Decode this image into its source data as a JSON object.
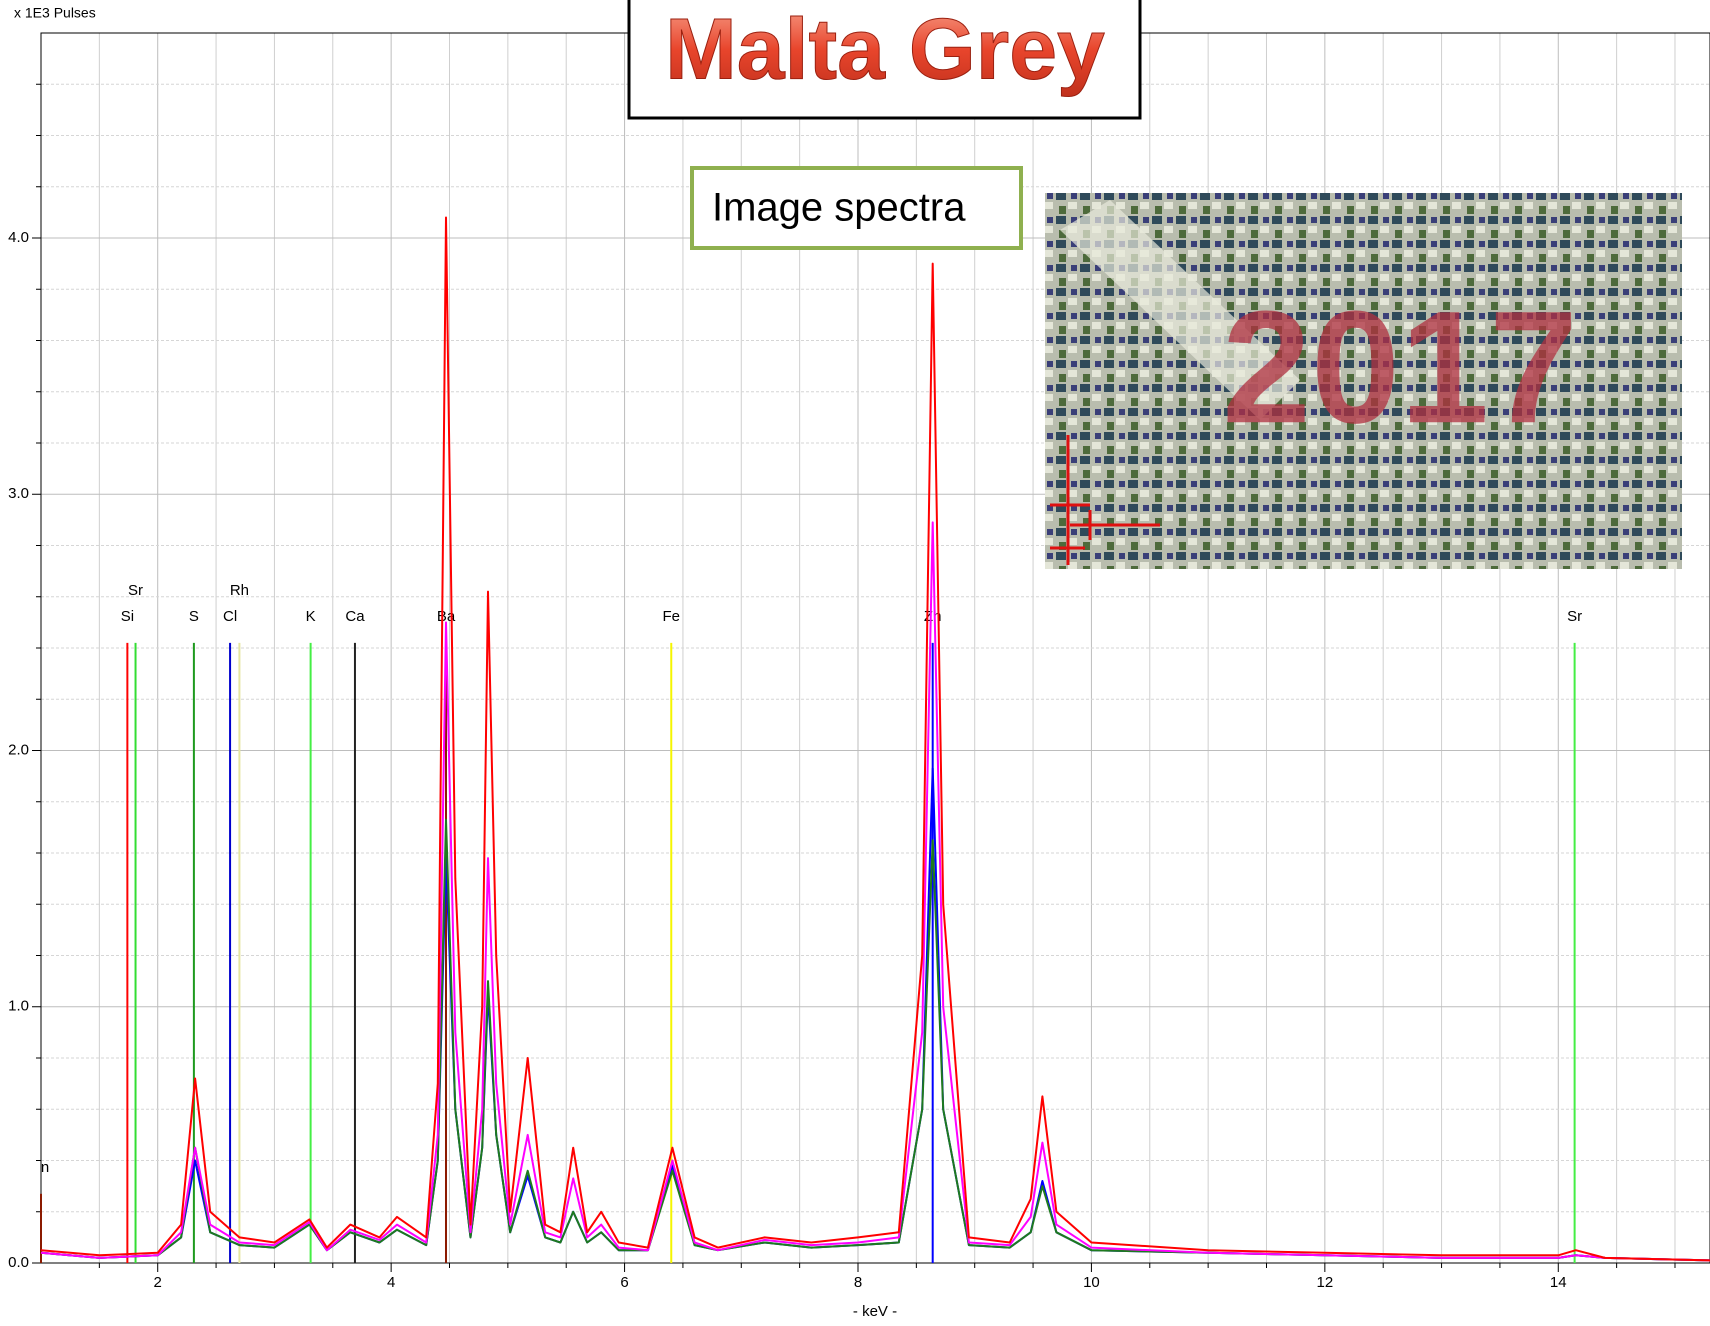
{
  "chart_data": {
    "type": "line",
    "title": "Malta Grey",
    "annotation": "Image spectra",
    "y_label": "x 1E3 Pulses",
    "x_label": "- keV -",
    "xlim": [
      1.0,
      15.3
    ],
    "ylim": [
      0,
      4.8
    ],
    "xticks": [
      2,
      4,
      6,
      8,
      10,
      12,
      14
    ],
    "minor_xticks": [
      1.5,
      2.5,
      3,
      3.5,
      4.5,
      5,
      5.5,
      6.5,
      7,
      7.5,
      8.5,
      9,
      9.5,
      10.5,
      11,
      11.5,
      12.5,
      13,
      13.5,
      14.5,
      15
    ],
    "yticks": [
      {
        "value": 0,
        "label": "0.0"
      },
      {
        "value": 1,
        "label": "1.0"
      },
      {
        "value": 2,
        "label": "2.0"
      },
      {
        "value": 3,
        "label": "3.0"
      },
      {
        "value": 4,
        "label": "4.0"
      }
    ],
    "minor_yticks": [
      0.2,
      0.4,
      0.6,
      0.8,
      1.2,
      1.4,
      1.6,
      1.8,
      2.2,
      2.4,
      2.6,
      2.8,
      3.2,
      3.4,
      3.6,
      3.8,
      4.2,
      4.4,
      4.6
    ],
    "grid": true,
    "x": [
      1.0,
      1.5,
      2.0,
      2.2,
      2.32,
      2.45,
      2.7,
      3.0,
      3.3,
      3.45,
      3.65,
      3.9,
      4.05,
      4.3,
      4.4,
      4.47,
      4.55,
      4.68,
      4.78,
      4.83,
      4.9,
      5.02,
      5.17,
      5.32,
      5.45,
      5.56,
      5.68,
      5.8,
      5.95,
      6.2,
      6.41,
      6.6,
      6.8,
      7.2,
      7.6,
      8.0,
      8.35,
      8.55,
      8.64,
      8.73,
      8.95,
      9.3,
      9.48,
      9.58,
      9.7,
      10.0,
      11.0,
      12.0,
      13.0,
      14.0,
      14.15,
      14.4,
      15.3
    ],
    "series": [
      {
        "color": "#0000ff",
        "values": [
          0.04,
          0.02,
          0.03,
          0.1,
          0.4,
          0.12,
          0.07,
          0.06,
          0.15,
          0.05,
          0.12,
          0.08,
          0.13,
          0.07,
          0.4,
          1.58,
          0.6,
          0.1,
          0.45,
          1.05,
          0.5,
          0.12,
          0.34,
          0.1,
          0.08,
          0.2,
          0.08,
          0.12,
          0.05,
          0.05,
          0.38,
          0.07,
          0.05,
          0.08,
          0.06,
          0.07,
          0.08,
          0.6,
          1.93,
          0.6,
          0.07,
          0.06,
          0.12,
          0.32,
          0.12,
          0.05,
          0.04,
          0.03,
          0.02,
          0.02,
          0.03,
          0.02,
          0.01
        ]
      },
      {
        "color": "#1e7a1e",
        "values": [
          0.04,
          0.02,
          0.03,
          0.1,
          0.45,
          0.12,
          0.07,
          0.06,
          0.15,
          0.05,
          0.12,
          0.08,
          0.13,
          0.07,
          0.4,
          1.73,
          0.6,
          0.1,
          0.45,
          1.1,
          0.5,
          0.12,
          0.36,
          0.1,
          0.08,
          0.2,
          0.08,
          0.12,
          0.05,
          0.05,
          0.36,
          0.07,
          0.05,
          0.08,
          0.06,
          0.07,
          0.08,
          0.6,
          1.65,
          0.6,
          0.07,
          0.06,
          0.12,
          0.3,
          0.12,
          0.05,
          0.04,
          0.03,
          0.02,
          0.02,
          0.03,
          0.02,
          0.01
        ]
      },
      {
        "color": "#ff00ff",
        "values": [
          0.04,
          0.02,
          0.03,
          0.12,
          0.45,
          0.15,
          0.08,
          0.07,
          0.16,
          0.05,
          0.13,
          0.09,
          0.15,
          0.08,
          0.5,
          2.5,
          0.9,
          0.12,
          0.6,
          1.58,
          0.7,
          0.15,
          0.5,
          0.12,
          0.1,
          0.33,
          0.1,
          0.15,
          0.06,
          0.05,
          0.4,
          0.08,
          0.05,
          0.09,
          0.07,
          0.08,
          0.1,
          0.9,
          2.89,
          1.0,
          0.08,
          0.07,
          0.18,
          0.47,
          0.15,
          0.06,
          0.04,
          0.03,
          0.02,
          0.02,
          0.03,
          0.02,
          0.01
        ]
      },
      {
        "color": "#ff0000",
        "values": [
          0.05,
          0.03,
          0.04,
          0.15,
          0.72,
          0.2,
          0.1,
          0.08,
          0.17,
          0.06,
          0.15,
          0.1,
          0.18,
          0.1,
          0.7,
          4.08,
          1.5,
          0.15,
          1.0,
          2.62,
          1.2,
          0.2,
          0.8,
          0.15,
          0.12,
          0.45,
          0.12,
          0.2,
          0.08,
          0.06,
          0.45,
          0.1,
          0.06,
          0.1,
          0.08,
          0.1,
          0.12,
          1.2,
          3.9,
          1.4,
          0.1,
          0.08,
          0.25,
          0.65,
          0.2,
          0.08,
          0.05,
          0.04,
          0.03,
          0.03,
          0.05,
          0.02,
          0.01
        ]
      }
    ],
    "element_lines": [
      {
        "label": "n",
        "x": 1.0,
        "height": 0.27,
        "color": "#8b1a00"
      },
      {
        "label": "Si",
        "x": 1.74,
        "height": 2.42,
        "color": "#ff0000"
      },
      {
        "label": "Sr",
        "x": 1.81,
        "height": 2.42,
        "color": "#33dd33"
      },
      {
        "label": "S",
        "x": 2.31,
        "height": 2.42,
        "color": "#1e9a1e"
      },
      {
        "label": "Cl",
        "x": 2.62,
        "height": 2.42,
        "color": "#0000cc"
      },
      {
        "label": "Rh",
        "x": 2.7,
        "height": 2.42,
        "color": "#e6e6a0"
      },
      {
        "label": "K",
        "x": 3.31,
        "height": 2.42,
        "color": "#44ee44"
      },
      {
        "label": "Ca",
        "x": 3.69,
        "height": 2.42,
        "color": "#222222"
      },
      {
        "label": "Ba",
        "x": 4.47,
        "height": 2.42,
        "color": "#8b1a00"
      },
      {
        "label": "Fe",
        "x": 6.4,
        "height": 2.42,
        "color": "#f5f500"
      },
      {
        "label": "Zn",
        "x": 8.64,
        "height": 2.42,
        "color": "#0000ff"
      },
      {
        "label": "Sr",
        "x": 14.14,
        "height": 2.42,
        "color": "#44ee44"
      }
    ]
  }
}
